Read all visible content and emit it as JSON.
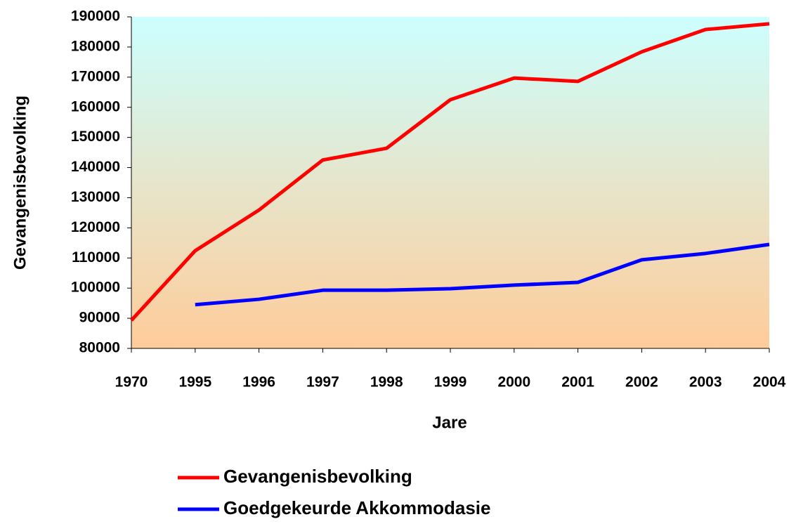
{
  "chart_data": {
    "type": "line",
    "x_label": "Jare",
    "y_label": "Gevangenisbevolking",
    "categories": [
      "1970",
      "1995",
      "1996",
      "1997",
      "1998",
      "1999",
      "2000",
      "2001",
      "2002",
      "2003",
      "2004"
    ],
    "series": [
      {
        "name": "Gevangenisbevolking",
        "color": "#ff0000",
        "values": [
          89300,
          112400,
          125900,
          142500,
          146400,
          162500,
          169700,
          168600,
          178400,
          185800,
          187700
        ]
      },
      {
        "name": "Goedgekeurde Akkommodasie",
        "color": "#0000ff",
        "values": [
          null,
          94500,
          96300,
          99300,
          99300,
          99800,
          101000,
          101900,
          109400,
          111500,
          114500
        ]
      }
    ],
    "ylim": [
      80000,
      190000
    ],
    "yticks": [
      80000,
      90000,
      100000,
      110000,
      120000,
      130000,
      140000,
      150000,
      160000,
      170000,
      180000,
      190000
    ],
    "grid": false,
    "legend": "bottom"
  }
}
